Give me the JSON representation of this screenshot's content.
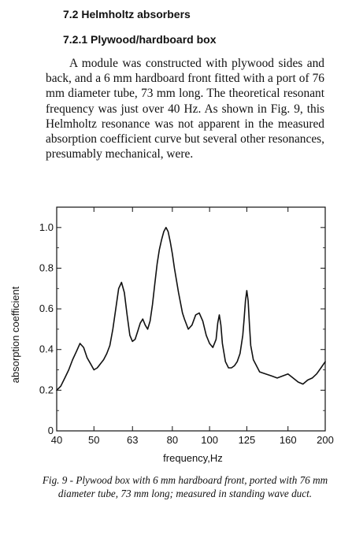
{
  "heading": {
    "section": "7.2 Helmholtz absorbers",
    "subsection": "7.2.1 Plywood/hardboard box"
  },
  "body_text": "A module was constructed with plywood sides and back, and a 6 mm hardboard front fitted with a port of 76 mm diameter tube, 73 mm long. The theoretical resonant frequency was just over 40 Hz. As shown in Fig. 9, this Helmholtz resonance was not apparent in the measured absorption coefficient curve but several other resonances, presumably mechanical, were.",
  "caption": "Fig. 9 - Plywood box with 6 mm hardboard front, ported with 76 mm diameter tube, 73 mm long; measured in standing wave duct.",
  "chart_data": {
    "type": "line",
    "title": "",
    "xlabel": "frequency,Hz",
    "ylabel": "absorption coefficient",
    "x_scale": "log",
    "xlim": [
      40,
      200
    ],
    "ylim": [
      0,
      1.1
    ],
    "x_ticks": [
      "40",
      "50",
      "63",
      "80",
      "100",
      "125",
      "160",
      "200"
    ],
    "y_ticks": [
      "0",
      "0.2",
      "0.4",
      "0.6",
      "0.8",
      "1.0"
    ],
    "grid": false,
    "series": [
      {
        "name": "",
        "x": [
          40,
          41,
          42,
          43,
          44,
          45,
          46,
          47,
          48,
          49,
          50,
          51,
          52,
          53,
          54,
          55,
          56,
          57,
          58,
          59,
          60,
          61,
          62,
          63,
          64,
          65,
          66,
          67,
          68,
          69,
          70,
          71,
          72,
          73,
          74,
          75,
          76,
          77,
          78,
          79,
          80,
          81,
          82,
          83,
          84,
          85,
          86,
          88,
          90,
          92,
          94,
          96,
          98,
          100,
          102,
          104,
          105,
          106,
          107,
          108,
          110,
          112,
          114,
          116,
          118,
          120,
          122,
          123,
          124,
          125,
          126,
          127,
          128,
          130,
          135,
          140,
          145,
          150,
          155,
          160,
          165,
          170,
          175,
          180,
          185,
          190,
          195,
          200
        ],
        "values": [
          0.2,
          0.22,
          0.26,
          0.3,
          0.35,
          0.39,
          0.43,
          0.41,
          0.36,
          0.33,
          0.3,
          0.31,
          0.33,
          0.35,
          0.38,
          0.42,
          0.5,
          0.6,
          0.7,
          0.73,
          0.68,
          0.57,
          0.47,
          0.44,
          0.45,
          0.49,
          0.53,
          0.55,
          0.52,
          0.5,
          0.54,
          0.62,
          0.72,
          0.82,
          0.89,
          0.94,
          0.98,
          1.0,
          0.98,
          0.93,
          0.87,
          0.8,
          0.74,
          0.68,
          0.63,
          0.58,
          0.55,
          0.5,
          0.52,
          0.57,
          0.58,
          0.54,
          0.47,
          0.43,
          0.41,
          0.45,
          0.53,
          0.57,
          0.52,
          0.43,
          0.34,
          0.31,
          0.31,
          0.32,
          0.34,
          0.38,
          0.47,
          0.55,
          0.64,
          0.69,
          0.64,
          0.52,
          0.42,
          0.35,
          0.29,
          0.28,
          0.27,
          0.26,
          0.27,
          0.28,
          0.26,
          0.24,
          0.23,
          0.25,
          0.26,
          0.28,
          0.31,
          0.34
        ]
      }
    ]
  }
}
